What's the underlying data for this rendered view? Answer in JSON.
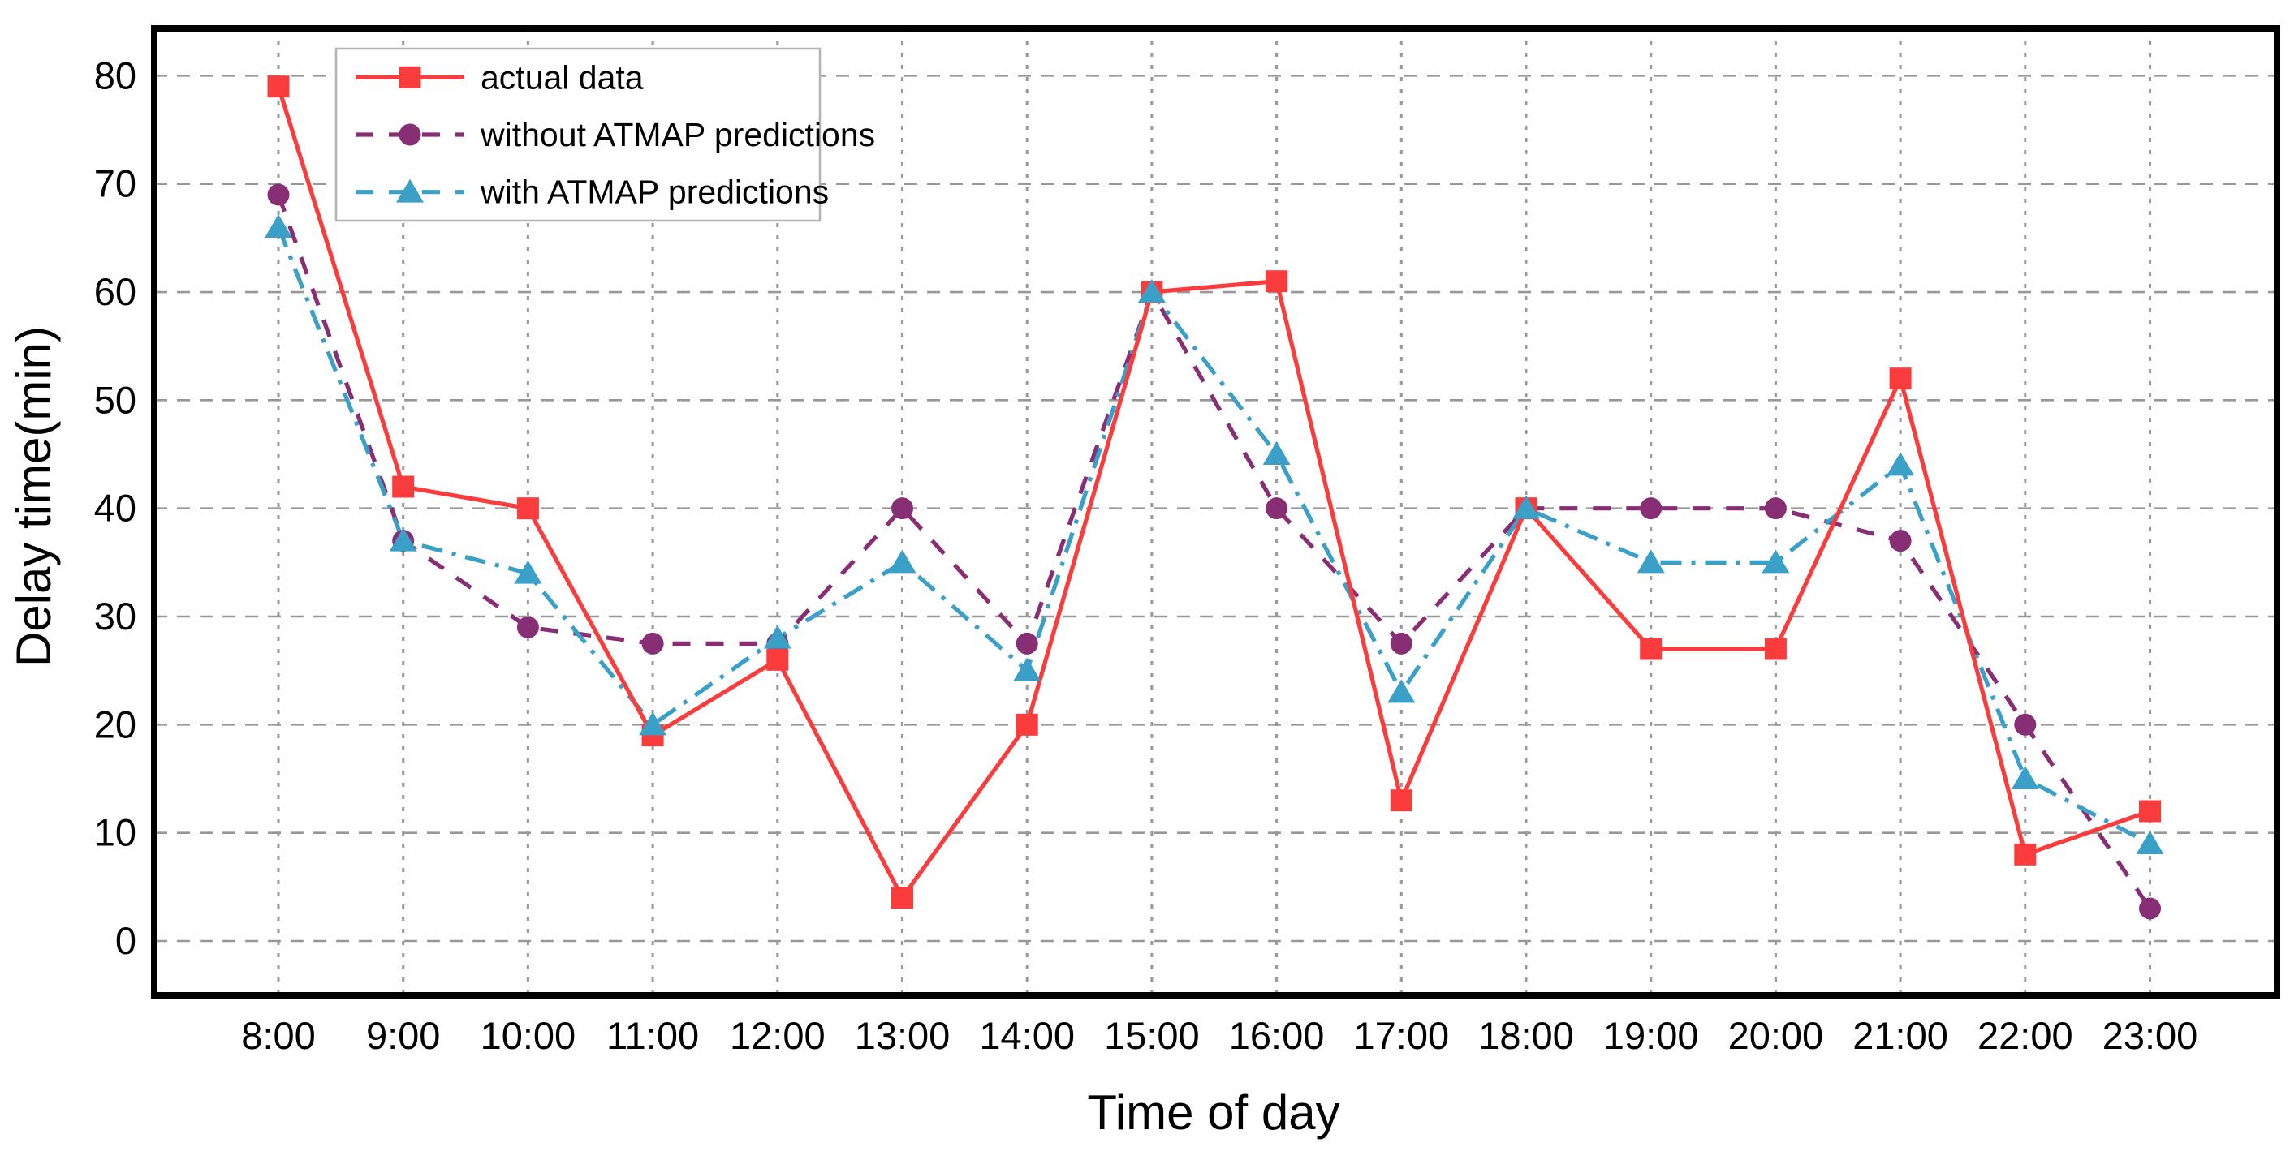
{
  "chart_data": {
    "type": "line",
    "title": "",
    "xlabel": "Time of day",
    "ylabel": "Delay time(min)",
    "categories": [
      "8:00",
      "9:00",
      "10:00",
      "11:00",
      "12:00",
      "13:00",
      "14:00",
      "15:00",
      "16:00",
      "17:00",
      "18:00",
      "19:00",
      "20:00",
      "21:00",
      "22:00",
      "23:00"
    ],
    "y_ticks": [
      0,
      10,
      20,
      30,
      40,
      50,
      60,
      70,
      80
    ],
    "ylim": [
      -5,
      84
    ],
    "grid": true,
    "legend_position": "top-left",
    "series": [
      {
        "name": "actual data",
        "color": "#fb3c3c",
        "marker": "square",
        "line_style": "solid",
        "values": [
          79,
          42,
          40,
          19,
          26,
          4,
          20,
          60,
          61,
          13,
          40,
          27,
          27,
          52,
          8,
          12
        ]
      },
      {
        "name": "without ATMAP predictions",
        "color": "#872e74",
        "marker": "circle",
        "line_style": "dashed",
        "values": [
          69,
          37,
          29,
          27.5,
          27.5,
          40,
          27.5,
          60,
          40,
          27.5,
          40,
          40,
          40,
          37,
          20,
          3
        ]
      },
      {
        "name": "with ATMAP predictions",
        "color": "#3aa0c8",
        "marker": "triangle",
        "line_style": "dash-dot",
        "values": [
          66,
          37,
          34,
          20,
          28,
          35,
          25,
          60,
          45,
          23,
          40,
          35,
          35,
          44,
          15,
          9
        ]
      }
    ],
    "colors": {
      "grid": "#989898",
      "axis": "#000000",
      "legend_border": "#b3b3b3",
      "background": "#ffffff",
      "text": "#000000"
    }
  }
}
